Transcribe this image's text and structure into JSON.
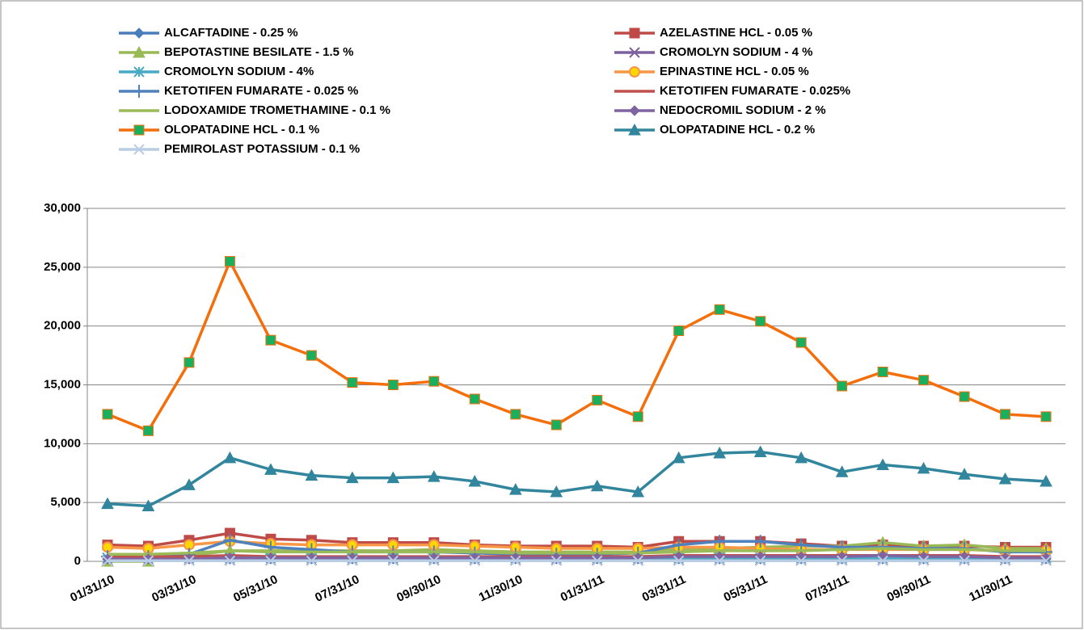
{
  "chart_data": {
    "type": "line",
    "categories": [
      "01/31/10",
      null,
      "03/31/10",
      null,
      "05/31/10",
      null,
      "07/31/10",
      null,
      "09/30/10",
      null,
      "11/30/10",
      null,
      "01/31/11",
      null,
      "03/31/11",
      null,
      "05/31/11",
      null,
      "07/31/11",
      null,
      "09/30/11",
      null,
      "11/30/11",
      null
    ],
    "ylim": [
      0,
      30000
    ],
    "yticks": [
      0,
      {
        "value": 5000,
        "label": "5,000"
      },
      {
        "value": 10000,
        "label": "10,000"
      },
      {
        "value": 15000,
        "label": "15,000"
      },
      {
        "value": 20000,
        "label": "20,000"
      },
      {
        "value": 25000,
        "label": "25,000"
      },
      {
        "value": 30000,
        "label": "30,000"
      }
    ],
    "grid": true,
    "legend": "top",
    "series": [
      {
        "name": "ALCAFTADINE - 0.25 %",
        "color": "#4a7ebb",
        "marker": "diamond",
        "marker_color": "#4a7ebb",
        "values": [
          200,
          200,
          200,
          200,
          200,
          200,
          200,
          200,
          200,
          200,
          200,
          200,
          200,
          200,
          200,
          200,
          200,
          200,
          200,
          200,
          200,
          200,
          200,
          200
        ]
      },
      {
        "name": "AZELASTINE HCL - 0.05 %",
        "color": "#be4b48",
        "marker": "square",
        "marker_color": "#be4b48",
        "values": [
          1400,
          1300,
          1800,
          2400,
          1900,
          1800,
          1600,
          1600,
          1600,
          1400,
          1300,
          1300,
          1300,
          1200,
          1700,
          1700,
          1700,
          1500,
          1300,
          1400,
          1300,
          1300,
          1200,
          1200
        ]
      },
      {
        "name": "BEPOTASTINE BESILATE - 1.5 %",
        "color": "#98b954",
        "marker": "triangle",
        "marker_color": "#98b954",
        "values": [
          0,
          0,
          500,
          900,
          900,
          900,
          900,
          900,
          1000,
          900,
          800,
          800,
          800,
          800,
          1000,
          1100,
          1200,
          1300,
          1300,
          1600,
          1300,
          1400,
          1100,
          1100
        ]
      },
      {
        "name": "CROMOLYN SODIUM - 4 %",
        "color": "#7d60a0",
        "marker": "x",
        "marker_color": "#7d60a0",
        "values": [
          100,
          100,
          100,
          100,
          100,
          100,
          100,
          100,
          100,
          100,
          100,
          100,
          100,
          100,
          100,
          100,
          100,
          100,
          100,
          100,
          100,
          100,
          100,
          100
        ]
      },
      {
        "name": "CROMOLYN SODIUM - 4%",
        "color": "#46aac5",
        "marker": "star",
        "marker_color": "#46aac5",
        "values": [
          300,
          300,
          300,
          300,
          300,
          300,
          300,
          300,
          300,
          300,
          300,
          300,
          300,
          300,
          300,
          300,
          300,
          300,
          300,
          300,
          300,
          300,
          300,
          300
        ]
      },
      {
        "name": "EPINASTINE HCL - 0.05 %",
        "color": "#f79646",
        "marker": "circle",
        "marker_color": "#ffd700",
        "values": [
          1200,
          1100,
          1400,
          1700,
          1500,
          1400,
          1400,
          1400,
          1400,
          1300,
          1200,
          1100,
          1100,
          1100,
          1200,
          1200,
          1100,
          1000,
          1000,
          1000,
          1000,
          1000,
          900,
          900
        ]
      },
      {
        "name": "KETOTIFEN FUMARATE - 0.025 %",
        "color": "#4f81bd",
        "marker": "plus",
        "marker_color": "#4f81bd",
        "values": [
          400,
          400,
          600,
          1800,
          1200,
          1000,
          800,
          800,
          800,
          700,
          600,
          600,
          600,
          700,
          1400,
          1700,
          1700,
          1400,
          1200,
          1200,
          1100,
          1100,
          800,
          800
        ]
      },
      {
        "name": "KETOTIFEN FUMARATE - 0.025%",
        "color": "#c0504d",
        "marker": "none",
        "marker_color": "#c0504d",
        "values": [
          400,
          400,
          400,
          500,
          400,
          400,
          400,
          400,
          400,
          400,
          400,
          400,
          400,
          400,
          500,
          500,
          500,
          500,
          500,
          500,
          500,
          500,
          400,
          400
        ]
      },
      {
        "name": "LODOXAMIDE TROMETHAMINE - 0.1 %",
        "color": "#9bbb59",
        "marker": "none",
        "marker_color": "#9bbb59",
        "values": [
          600,
          600,
          700,
          900,
          800,
          800,
          800,
          800,
          800,
          800,
          700,
          700,
          700,
          700,
          800,
          900,
          900,
          900,
          1000,
          1100,
          1000,
          1000,
          900,
          900
        ]
      },
      {
        "name": "NEDOCROMIL SODIUM - 2 %",
        "color": "#8064a2",
        "marker": "diamond",
        "marker_color": "#8064a2",
        "values": [
          200,
          200,
          200,
          300,
          300,
          300,
          300,
          300,
          300,
          300,
          300,
          300,
          300,
          300,
          400,
          400,
          400,
          400,
          400,
          500,
          400,
          400,
          300,
          300
        ]
      },
      {
        "name": "OLOPATADINE HCL - 0.1 %",
        "color": "#f46f0c",
        "marker": "square",
        "marker_color": "#1aaf5d",
        "values": [
          12500,
          11100,
          16900,
          25500,
          18800,
          17500,
          15200,
          15000,
          15300,
          13800,
          12500,
          11600,
          13700,
          12300,
          19600,
          21400,
          20400,
          18600,
          14900,
          16100,
          15400,
          14000,
          12500,
          12300
        ]
      },
      {
        "name": "OLOPATADINE HCL - 0.2 %",
        "color": "#31859c",
        "marker": "triangle",
        "marker_color": "#31859c",
        "values": [
          4900,
          4700,
          6500,
          8800,
          7800,
          7300,
          7100,
          7100,
          7200,
          6800,
          6100,
          5900,
          6400,
          5900,
          8800,
          9200,
          9300,
          8800,
          7600,
          8200,
          7900,
          7400,
          7000,
          6800
        ]
      },
      {
        "name": "PEMIROLAST POTASSIUM - 0.1 %",
        "color": "#b9cde5",
        "marker": "x",
        "marker_color": "#b9cde5",
        "values": [
          50,
          50,
          50,
          50,
          50,
          50,
          50,
          50,
          50,
          50,
          50,
          50,
          50,
          50,
          50,
          50,
          50,
          50,
          50,
          50,
          50,
          50,
          50,
          50
        ]
      }
    ]
  }
}
